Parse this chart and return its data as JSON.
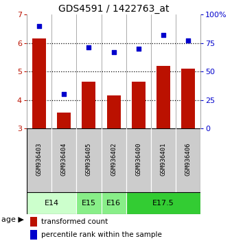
{
  "title": "GDS4591 / 1422763_at",
  "samples": [
    "GSM936403",
    "GSM936404",
    "GSM936405",
    "GSM936402",
    "GSM936400",
    "GSM936401",
    "GSM936406"
  ],
  "red_values": [
    6.15,
    3.55,
    4.65,
    4.15,
    4.65,
    5.2,
    5.1
  ],
  "blue_values": [
    90,
    30,
    71,
    67,
    70,
    82,
    77
  ],
  "ylim_left": [
    3,
    7
  ],
  "ylim_right": [
    0,
    100
  ],
  "yticks_left": [
    3,
    4,
    5,
    6,
    7
  ],
  "yticks_right": [
    0,
    25,
    50,
    75,
    100
  ],
  "yticklabels_right": [
    "0",
    "25",
    "50",
    "75",
    "100%"
  ],
  "age_groups": [
    {
      "label": "E14",
      "samples": [
        0,
        1
      ],
      "color": "#ccffcc"
    },
    {
      "label": "E15",
      "samples": [
        2
      ],
      "color": "#88ee88"
    },
    {
      "label": "E16",
      "samples": [
        3
      ],
      "color": "#88ee88"
    },
    {
      "label": "E17.5",
      "samples": [
        4,
        5,
        6
      ],
      "color": "#33cc33"
    }
  ],
  "bar_color": "#bb1100",
  "dot_color": "#0000cc",
  "bg_color": "#ffffff",
  "sample_bg": "#cccccc",
  "legend_red_label": "transformed count",
  "legend_blue_label": "percentile rank within the sample",
  "age_label": "age"
}
